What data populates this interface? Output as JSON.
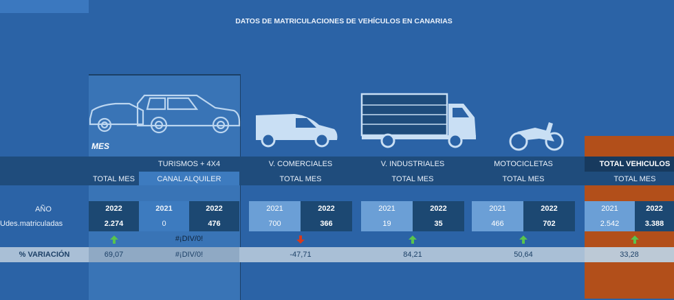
{
  "title": "DATOS DE MATRICULACIONES DE VEHÍCULOS EN CANARIAS",
  "mes_label": "MES",
  "sections": {
    "turismos": {
      "label": "TURISMOS + 4X4",
      "sub1": "TOTAL MES",
      "sub2": "CANAL ALQUILER"
    },
    "comerciales": {
      "label": "V. COMERCIALES",
      "sub": "TOTAL MES"
    },
    "industriales": {
      "label": "V. INDUSTRIALES",
      "sub": "TOTAL MES"
    },
    "motocicletas": {
      "label": "MOTOCICLETAS",
      "sub": "TOTAL MES"
    },
    "total": {
      "label": "TOTAL VEHICULOS",
      "sub": "TOTAL MES"
    }
  },
  "row_labels": {
    "anio": "AÑO",
    "udes": "Udes.matriculadas",
    "variacion": "% VARIACIÓN"
  },
  "turismos_total": {
    "year": "2022",
    "value": "2.274",
    "variation": "69,07"
  },
  "turismos_alquiler": {
    "year_a": "2021",
    "year_b": "2022",
    "value_a": "0",
    "value_b": "476",
    "div_error": "#¡DIV/0!",
    "variation": "#¡DIV/0!"
  },
  "comerciales": {
    "year_a": "2021",
    "year_b": "2022",
    "value_a": "700",
    "value_b": "366",
    "variation": "-47,71"
  },
  "industriales": {
    "year_a": "2021",
    "year_b": "2022",
    "value_a": "19",
    "value_b": "35",
    "variation": "84,21"
  },
  "motocicletas": {
    "year_a": "2021",
    "year_b": "2022",
    "value_a": "466",
    "value_b": "702",
    "variation": "50,64"
  },
  "total": {
    "year_a": "2021",
    "year_b": "2022",
    "value_a": "2.542",
    "value_b": "3.388",
    "variation": "33,28"
  },
  "colors": {
    "background": "#2b63a6",
    "dark": "#1c4872",
    "accent_orange": "#b24f1a",
    "up": "#59c44d",
    "down": "#d83a1c"
  }
}
